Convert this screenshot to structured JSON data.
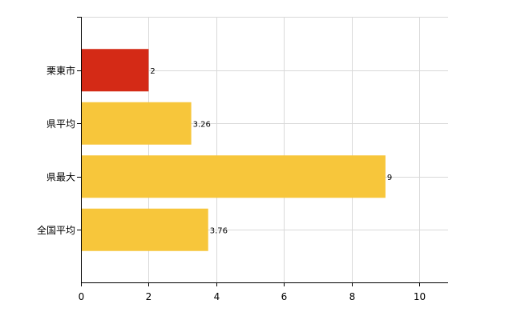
{
  "chart_data": {
    "type": "bar",
    "orientation": "horizontal",
    "categories": [
      "栗東市",
      "県平均",
      "県最大",
      "全国平均"
    ],
    "values": [
      2,
      3.26,
      9,
      3.76
    ],
    "data_labels": [
      "2",
      "3.26",
      "9",
      "3.76"
    ],
    "colors": [
      "#d42a16",
      "#f7c63b",
      "#f7c63b",
      "#f7c63b"
    ],
    "xlim": [
      0,
      10.85
    ],
    "x_ticks": [
      0,
      2,
      4,
      6,
      8,
      10
    ],
    "x_tick_labels": [
      "0",
      "2",
      "4",
      "6",
      "8",
      "10"
    ],
    "grid": true,
    "title": "",
    "xlabel": "",
    "ylabel": ""
  }
}
